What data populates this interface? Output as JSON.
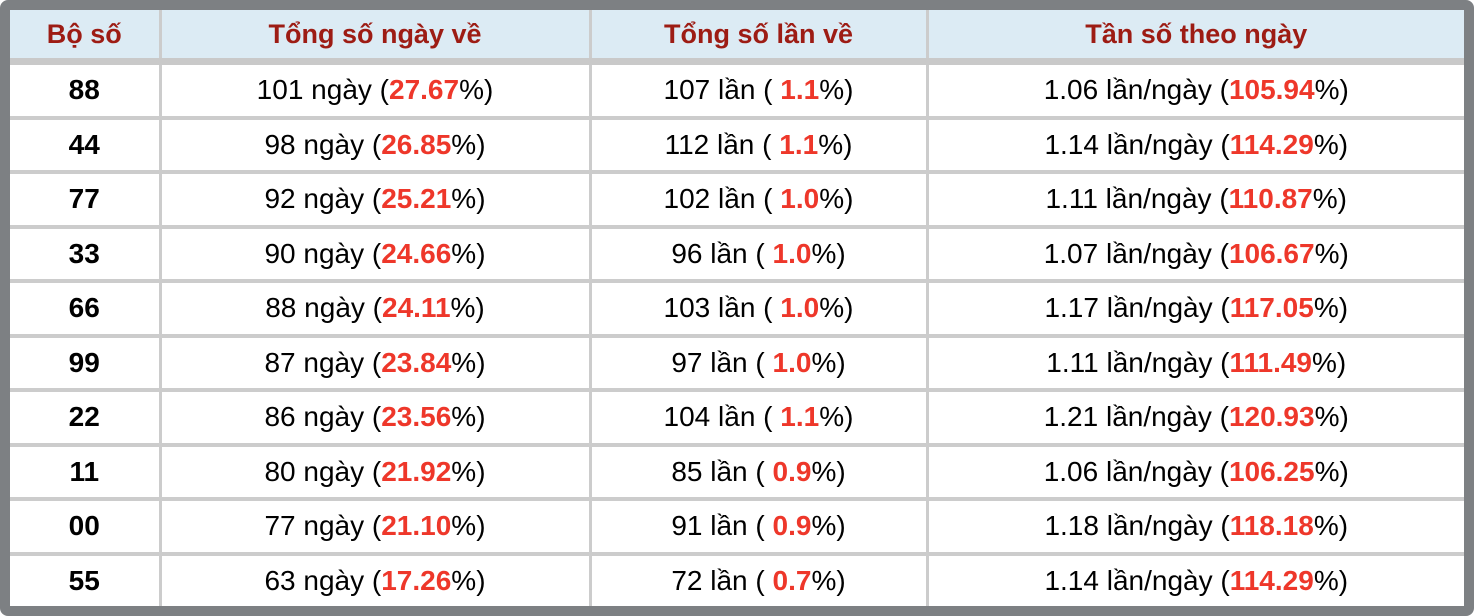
{
  "chart_data": {
    "type": "table",
    "columns": [
      "Bộ số",
      "Tổng số ngày về",
      "Tổng số lần về",
      "Tần số theo ngày"
    ],
    "rows": [
      {
        "pair": "88",
        "days": "101",
        "days_pct": "27.67",
        "times": "107",
        "times_pct": "1.1",
        "freq": "1.06",
        "freq_pct": "105.94"
      },
      {
        "pair": "44",
        "days": "98",
        "days_pct": "26.85",
        "times": "112",
        "times_pct": "1.1",
        "freq": "1.14",
        "freq_pct": "114.29"
      },
      {
        "pair": "77",
        "days": "92",
        "days_pct": "25.21",
        "times": "102",
        "times_pct": "1.0",
        "freq": "1.11",
        "freq_pct": "110.87"
      },
      {
        "pair": "33",
        "days": "90",
        "days_pct": "24.66",
        "times": "96",
        "times_pct": "1.0",
        "freq": "1.07",
        "freq_pct": "106.67"
      },
      {
        "pair": "66",
        "days": "88",
        "days_pct": "24.11",
        "times": "103",
        "times_pct": "1.0",
        "freq": "1.17",
        "freq_pct": "117.05"
      },
      {
        "pair": "99",
        "days": "87",
        "days_pct": "23.84",
        "times": "97",
        "times_pct": "1.0",
        "freq": "1.11",
        "freq_pct": "111.49"
      },
      {
        "pair": "22",
        "days": "86",
        "days_pct": "23.56",
        "times": "104",
        "times_pct": "1.1",
        "freq": "1.21",
        "freq_pct": "120.93"
      },
      {
        "pair": "11",
        "days": "80",
        "days_pct": "21.92",
        "times": "85",
        "times_pct": "0.9",
        "freq": "1.06",
        "freq_pct": "106.25"
      },
      {
        "pair": "00",
        "days": "77",
        "days_pct": "21.10",
        "times": "91",
        "times_pct": "0.9",
        "freq": "1.18",
        "freq_pct": "118.18"
      },
      {
        "pair": "55",
        "days": "63",
        "days_pct": "17.26",
        "times": "72",
        "times_pct": "0.7",
        "freq": "1.14",
        "freq_pct": "114.29"
      }
    ]
  },
  "format": {
    "days_sep": " ngày (",
    "times_sep": " lần ( ",
    "freq_sep": " lần/ngày (",
    "pct_close": "%)"
  },
  "colors": {
    "accent_red": "#ee372a",
    "header_text": "#9d1c14",
    "header_bg": "#dcebf4",
    "frame_gray": "#7d8083",
    "separator": "#cccccc"
  }
}
